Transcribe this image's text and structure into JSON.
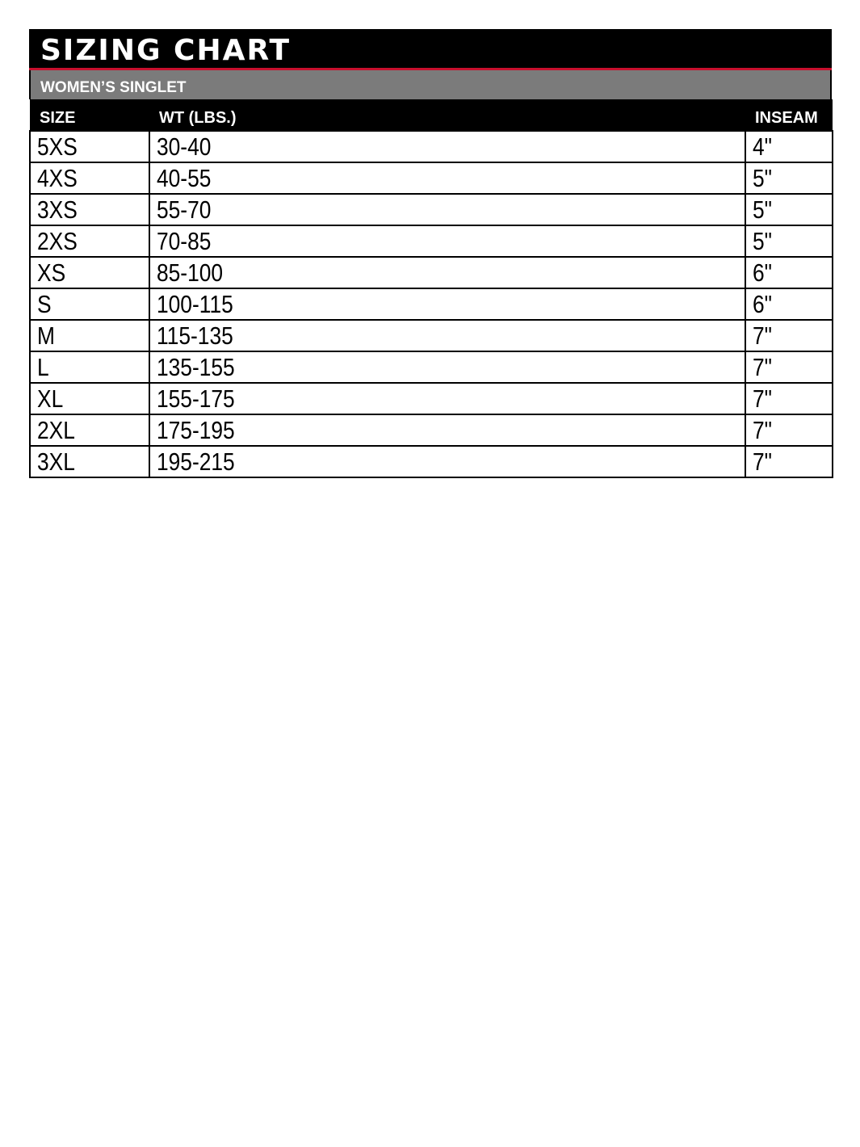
{
  "title": "Sizing Chart",
  "subtitle": "WOMEN’S SINGLET",
  "accent_color": "#c8102e",
  "columns": [
    "SIZE",
    "WT (LBS.)",
    "INSEAM"
  ],
  "rows": [
    [
      "5XS",
      "30-40",
      "4\""
    ],
    [
      "4XS",
      "40-55",
      "5\""
    ],
    [
      "3XS",
      "55-70",
      "5\""
    ],
    [
      "2XS",
      "70-85",
      "5\""
    ],
    [
      "XS",
      "85-100",
      "6\""
    ],
    [
      "S",
      "100-115",
      "6\""
    ],
    [
      "M",
      "115-135",
      "7\""
    ],
    [
      "L",
      "135-155",
      "7\""
    ],
    [
      "XL",
      "155-175",
      "7\""
    ],
    [
      "2XL",
      "175-195",
      "7\""
    ],
    [
      "3XL",
      "195-215",
      "7\""
    ]
  ]
}
